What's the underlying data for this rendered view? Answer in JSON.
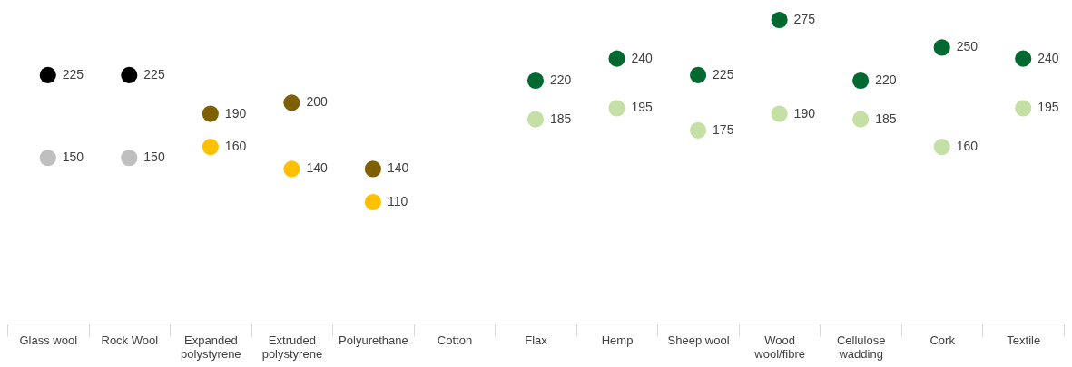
{
  "chart_data": {
    "type": "scatter",
    "categories": [
      "Glass wool",
      "Rock Wool",
      "Expanded polystyrene",
      "Extruded polystyrene",
      "Polyurethane",
      "Cotton",
      "Flax",
      "Hemp",
      "Sheep wool",
      "Wood wool/fibre",
      "Cellulose wadding",
      "Cork",
      "Textile"
    ],
    "series": [
      {
        "colors": [
          "#000000",
          "#000000",
          "#7f6000",
          "#7f6000",
          "#7f6000",
          null,
          "#00692f",
          "#00692f",
          "#00692f",
          "#00692f",
          "#00692f",
          "#00692f",
          "#00692f"
        ],
        "values": [
          225,
          225,
          190,
          200,
          140,
          null,
          220,
          240,
          225,
          275,
          220,
          250,
          240
        ]
      },
      {
        "colors": [
          "#bfbfbf",
          "#bfbfbf",
          "#ffc000",
          "#ffc000",
          "#ffc000",
          null,
          "#c5e0a5",
          "#c5e0a5",
          "#c5e0a5",
          "#c5e0a5",
          "#c5e0a5",
          "#c5e0a5",
          "#c5e0a5"
        ],
        "values": [
          150,
          150,
          160,
          140,
          110,
          null,
          185,
          195,
          175,
          190,
          185,
          160,
          195
        ]
      }
    ],
    "data_labels": true,
    "marker": "circle",
    "grid": false,
    "tick_labels": "x"
  }
}
